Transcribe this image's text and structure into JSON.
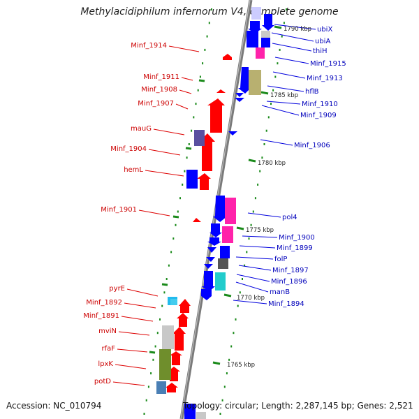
{
  "title": "Methylacidiphilum infernorum V4, complete genome",
  "footer": {
    "accession": "Accession: NC_010794",
    "topology": "Topology: circular; Length: 2,287,145 bp; Genes: 2,521"
  },
  "colors": {
    "backbone": "#8c8c8c",
    "forward_gene": "#ff0000",
    "reverse_gene": "#0000ff",
    "left_label": "#cc0000",
    "right_label": "#0000bb",
    "tick": "#228822"
  },
  "scale_labels": [
    "1790 kbp",
    "1785 kbp",
    "1780 kbp",
    "1775 kbp",
    "1770 kbp",
    "1765 kbp"
  ],
  "left_labels": [
    "Minf_1914",
    "Minf_1911",
    "Minf_1908",
    "Minf_1907",
    "mauG",
    "Minf_1904",
    "hemL",
    "Minf_1901",
    "pyrE",
    "Minf_1892",
    "Minf_1891",
    "mviN",
    "rfaF",
    "lpxK",
    "potD"
  ],
  "right_labels": [
    "ubiX",
    "ubiA",
    "thiH",
    "Minf_1915",
    "Minf_1913",
    "hflB",
    "Minf_1910",
    "Minf_1909",
    "Minf_1906",
    "pol4",
    "Minf_1900",
    "Minf_1899",
    "folP",
    "Minf_1897",
    "Minf_1896",
    "manB",
    "Minf_1894"
  ]
}
